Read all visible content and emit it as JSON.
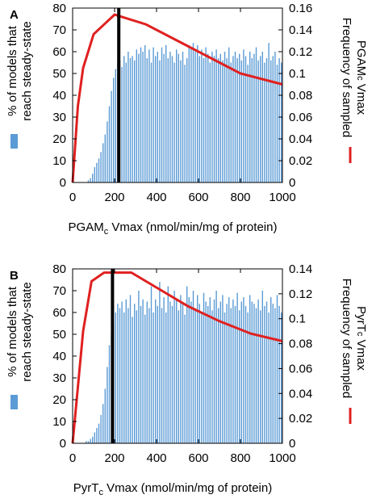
{
  "colors": {
    "bar": "#5b9bd5",
    "line": "#e02020",
    "marker": "#000000"
  },
  "chart_data": [
    {
      "type": "bar",
      "panel_label": "A",
      "xlabel": {
        "pre": "PGAM",
        "sub": "c",
        "post": " Vmax (nmol/min/mg of protein)"
      },
      "ylabel_lines": [
        "% of models that",
        "reach steady-state"
      ],
      "y2label": {
        "line1": "Frequency of sampled",
        "line2_pre": "PGAM",
        "line2_sub": "c",
        "line2_post": " Vmax"
      },
      "xlim": [
        0,
        1000
      ],
      "ylim": [
        0,
        80
      ],
      "y2lim": [
        0,
        0.16
      ],
      "xticks": [
        "0",
        "200",
        "400",
        "600",
        "800",
        "1000"
      ],
      "yticks": [
        "0",
        "10",
        "20",
        "30",
        "40",
        "50",
        "60",
        "70",
        "80"
      ],
      "y2ticks": [
        "0",
        "0.02",
        "0.04",
        "0.06",
        "0.08",
        "0.1",
        "0.12",
        "0.14",
        "0.16"
      ],
      "bar_width": 10,
      "bars": {
        "x": [
          75,
          85,
          95,
          105,
          115,
          125,
          135,
          145,
          155,
          165,
          175,
          185,
          195,
          205,
          215,
          225,
          235,
          245,
          255,
          265,
          275,
          285,
          295,
          305,
          315,
          325,
          335,
          345,
          355,
          365,
          375,
          385,
          395,
          405,
          415,
          425,
          435,
          445,
          455,
          465,
          475,
          485,
          495,
          505,
          515,
          525,
          535,
          545,
          555,
          565,
          575,
          585,
          595,
          605,
          615,
          625,
          635,
          645,
          655,
          665,
          675,
          685,
          695,
          705,
          715,
          725,
          735,
          745,
          755,
          765,
          775,
          785,
          795,
          805,
          815,
          825,
          835,
          845,
          855,
          865,
          875,
          885,
          895,
          905,
          915,
          925,
          935,
          945,
          955,
          965,
          975,
          985,
          995
        ],
        "values": [
          1,
          2,
          4,
          7,
          9,
          11,
          14,
          18,
          22,
          28,
          35,
          42,
          48,
          52,
          55,
          56,
          53,
          58,
          55,
          60,
          57,
          58,
          56,
          61,
          59,
          62,
          60,
          63,
          57,
          61,
          55,
          62,
          58,
          60,
          56,
          62,
          59,
          63,
          57,
          60,
          58,
          55,
          61,
          59,
          56,
          60,
          54,
          57,
          63,
          62,
          64,
          60,
          63,
          58,
          61,
          57,
          62,
          59,
          55,
          60,
          58,
          61,
          57,
          59,
          56,
          60,
          57,
          62,
          55,
          58,
          60,
          57,
          59,
          56,
          61,
          58,
          54,
          60,
          57,
          59,
          62,
          56,
          58,
          60,
          55,
          57,
          64,
          56,
          58,
          60,
          54,
          57,
          55
        ]
      },
      "frequency_line": {
        "x": [
          0,
          25,
          50,
          100,
          200,
          350,
          500,
          650,
          800,
          1000
        ],
        "y": [
          0,
          0.07,
          0.105,
          0.136,
          0.154,
          0.145,
          0.13,
          0.115,
          0.1,
          0.09
        ]
      },
      "marker_x": 220
    },
    {
      "type": "bar",
      "panel_label": "B",
      "xlabel": {
        "pre": "PyrT",
        "sub": "c",
        "post": " Vmax (nmol/min/mg of protein)"
      },
      "ylabel_lines": [
        "% of models that",
        "reach steady-state"
      ],
      "y2label": {
        "line1": "Frequency of sampled",
        "line2_pre": "PyrT",
        "line2_sub": "c",
        "line2_post": " Vmax"
      },
      "xlim": [
        0,
        1000
      ],
      "ylim": [
        0,
        80
      ],
      "y2lim": [
        0,
        0.14
      ],
      "xticks": [
        "0",
        "200",
        "400",
        "600",
        "800",
        "1000"
      ],
      "yticks": [
        "0",
        "10",
        "20",
        "30",
        "40",
        "50",
        "60",
        "70",
        "80"
      ],
      "y2ticks": [
        "0",
        "0.02",
        "0.04",
        "0.06",
        "0.08",
        "0.1",
        "0.12",
        "0.14"
      ],
      "bar_width": 10,
      "bars": {
        "x": [
          65,
          75,
          85,
          95,
          105,
          115,
          125,
          135,
          145,
          155,
          165,
          175,
          185,
          195,
          205,
          215,
          225,
          235,
          245,
          255,
          265,
          275,
          285,
          295,
          305,
          315,
          325,
          335,
          345,
          355,
          365,
          375,
          385,
          395,
          405,
          415,
          425,
          435,
          445,
          455,
          465,
          475,
          485,
          495,
          505,
          515,
          525,
          535,
          545,
          555,
          565,
          575,
          585,
          595,
          605,
          615,
          625,
          635,
          645,
          655,
          665,
          675,
          685,
          695,
          705,
          715,
          725,
          735,
          745,
          755,
          765,
          775,
          785,
          795,
          805,
          815,
          825,
          835,
          845,
          855,
          865,
          875,
          885,
          895,
          905,
          915,
          925,
          935,
          945,
          955,
          965,
          975,
          985,
          995
        ],
        "values": [
          1,
          1,
          2,
          3,
          5,
          7,
          9,
          13,
          18,
          25,
          35,
          45,
          50,
          55,
          60,
          64,
          62,
          65,
          60,
          66,
          62,
          68,
          58,
          64,
          61,
          70,
          63,
          66,
          59,
          65,
          62,
          72,
          60,
          66,
          63,
          74,
          62,
          67,
          60,
          72,
          65,
          63,
          70,
          66,
          61,
          68,
          64,
          59,
          72,
          67,
          65,
          70,
          62,
          68,
          64,
          60,
          69,
          65,
          63,
          67,
          61,
          66,
          70,
          62,
          65,
          68,
          60,
          64,
          67,
          62,
          66,
          63,
          69,
          61,
          65,
          67,
          63,
          60,
          68,
          65,
          64,
          62,
          66,
          61,
          70,
          63,
          65,
          60,
          67,
          64,
          62,
          68,
          63,
          60
        ]
      },
      "frequency_line": {
        "x": [
          0,
          50,
          90,
          150,
          200,
          280,
          400,
          550,
          700,
          850,
          1000
        ],
        "y": [
          0,
          0.09,
          0.13,
          0.137,
          0.137,
          0.137,
          0.125,
          0.11,
          0.098,
          0.088,
          0.082
        ]
      },
      "marker_x": 190
    }
  ]
}
